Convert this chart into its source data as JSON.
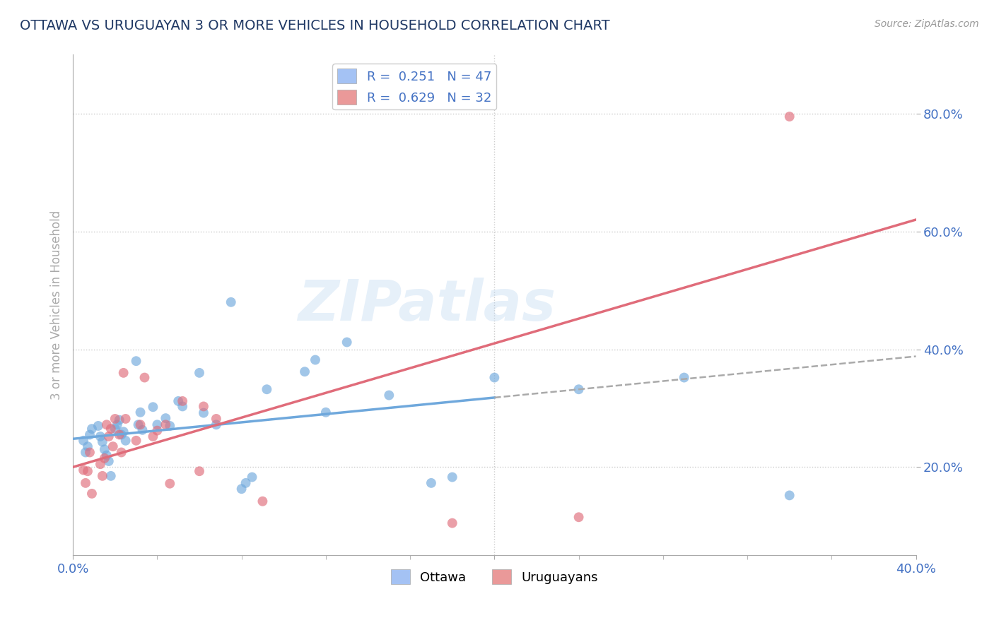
{
  "title": "OTTAWA VS URUGUAYAN 3 OR MORE VEHICLES IN HOUSEHOLD CORRELATION CHART",
  "source": "Source: ZipAtlas.com",
  "ylabel_label": "3 or more Vehicles in Household",
  "xlim": [
    0.0,
    0.4
  ],
  "ylim": [
    0.05,
    0.9
  ],
  "xtick_labels": [
    "0.0%",
    "",
    "",
    "",
    "",
    "",
    "",
    "",
    "",
    "40.0%"
  ],
  "ytick_labels": [
    "20.0%",
    "40.0%",
    "60.0%",
    "80.0%"
  ],
  "ytick_values": [
    0.2,
    0.4,
    0.6,
    0.8
  ],
  "legend_entries": [
    {
      "label": "R =  0.251   N = 47",
      "color": "#a4c2f4"
    },
    {
      "label": "R =  0.629   N = 32",
      "color": "#ea9999"
    }
  ],
  "legend_bottom": [
    {
      "label": "Ottawa",
      "color": "#a4c2f4"
    },
    {
      "label": "Uruguayans",
      "color": "#ea9999"
    }
  ],
  "watermark": "ZIPatlas",
  "ottawa_scatter": [
    [
      0.005,
      0.245
    ],
    [
      0.007,
      0.235
    ],
    [
      0.008,
      0.255
    ],
    [
      0.009,
      0.265
    ],
    [
      0.006,
      0.225
    ],
    [
      0.012,
      0.27
    ],
    [
      0.013,
      0.252
    ],
    [
      0.014,
      0.243
    ],
    [
      0.015,
      0.23
    ],
    [
      0.016,
      0.22
    ],
    [
      0.017,
      0.21
    ],
    [
      0.018,
      0.185
    ],
    [
      0.02,
      0.265
    ],
    [
      0.021,
      0.272
    ],
    [
      0.022,
      0.28
    ],
    [
      0.023,
      0.255
    ],
    [
      0.024,
      0.26
    ],
    [
      0.025,
      0.245
    ],
    [
      0.03,
      0.38
    ],
    [
      0.031,
      0.272
    ],
    [
      0.032,
      0.293
    ],
    [
      0.033,
      0.263
    ],
    [
      0.038,
      0.302
    ],
    [
      0.04,
      0.272
    ],
    [
      0.044,
      0.283
    ],
    [
      0.046,
      0.27
    ],
    [
      0.05,
      0.312
    ],
    [
      0.052,
      0.303
    ],
    [
      0.06,
      0.36
    ],
    [
      0.062,
      0.292
    ],
    [
      0.068,
      0.272
    ],
    [
      0.075,
      0.48
    ],
    [
      0.08,
      0.163
    ],
    [
      0.082,
      0.173
    ],
    [
      0.085,
      0.183
    ],
    [
      0.092,
      0.332
    ],
    [
      0.11,
      0.362
    ],
    [
      0.115,
      0.382
    ],
    [
      0.12,
      0.293
    ],
    [
      0.13,
      0.412
    ],
    [
      0.15,
      0.322
    ],
    [
      0.17,
      0.173
    ],
    [
      0.18,
      0.183
    ],
    [
      0.2,
      0.352
    ],
    [
      0.24,
      0.332
    ],
    [
      0.29,
      0.352
    ],
    [
      0.34,
      0.152
    ]
  ],
  "uruguayan_scatter": [
    [
      0.005,
      0.195
    ],
    [
      0.006,
      0.173
    ],
    [
      0.007,
      0.193
    ],
    [
      0.008,
      0.225
    ],
    [
      0.009,
      0.155
    ],
    [
      0.013,
      0.205
    ],
    [
      0.014,
      0.185
    ],
    [
      0.015,
      0.215
    ],
    [
      0.016,
      0.272
    ],
    [
      0.017,
      0.252
    ],
    [
      0.018,
      0.265
    ],
    [
      0.019,
      0.235
    ],
    [
      0.02,
      0.282
    ],
    [
      0.022,
      0.255
    ],
    [
      0.023,
      0.225
    ],
    [
      0.024,
      0.36
    ],
    [
      0.025,
      0.282
    ],
    [
      0.03,
      0.245
    ],
    [
      0.032,
      0.272
    ],
    [
      0.034,
      0.352
    ],
    [
      0.038,
      0.252
    ],
    [
      0.04,
      0.262
    ],
    [
      0.044,
      0.272
    ],
    [
      0.046,
      0.172
    ],
    [
      0.052,
      0.312
    ],
    [
      0.06,
      0.193
    ],
    [
      0.062,
      0.303
    ],
    [
      0.068,
      0.282
    ],
    [
      0.09,
      0.142
    ],
    [
      0.18,
      0.105
    ],
    [
      0.24,
      0.115
    ],
    [
      0.34,
      0.795
    ]
  ],
  "ottawa_solid_line": {
    "x0": 0.0,
    "x1": 0.2,
    "y0": 0.248,
    "y1": 0.318
  },
  "ottawa_dashed_line": {
    "x0": 0.2,
    "x1": 0.4,
    "y0": 0.318,
    "y1": 0.388
  },
  "uruguayan_line": {
    "x0": 0.0,
    "x1": 0.4,
    "y0": 0.2,
    "y1": 0.62
  },
  "scatter_alpha": 0.65,
  "scatter_size": 100,
  "ottawa_color": "#6fa8dc",
  "uruguayan_color": "#e06c7a",
  "title_color": "#1f3864",
  "axis_color": "#aaaaaa",
  "grid_color": "#cccccc",
  "tick_color": "#4472c4",
  "source_color": "#999999",
  "background_color": "#ffffff"
}
